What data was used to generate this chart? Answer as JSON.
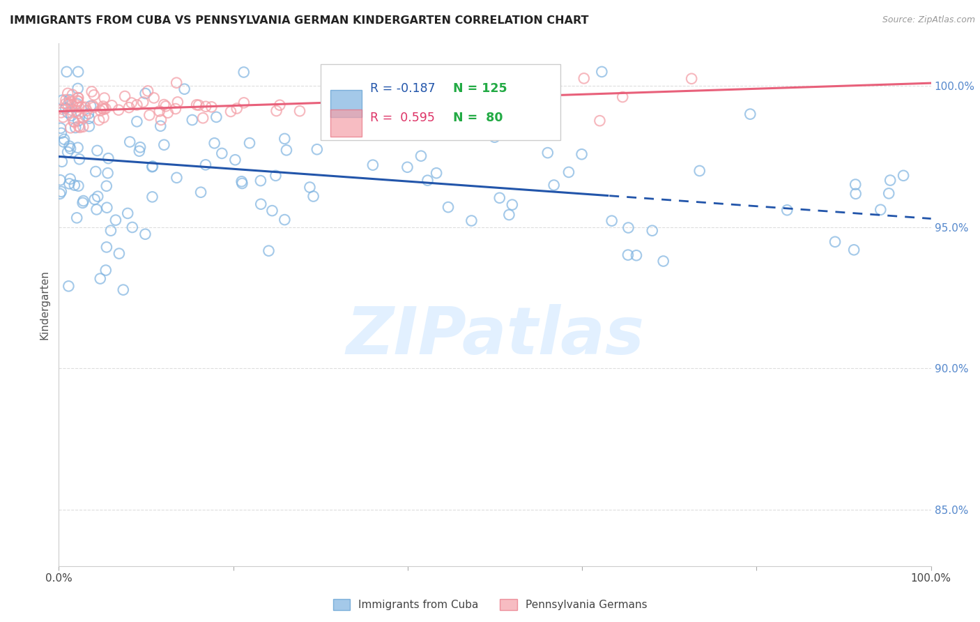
{
  "title": "IMMIGRANTS FROM CUBA VS PENNSYLVANIA GERMAN KINDERGARTEN CORRELATION CHART",
  "source": "Source: ZipAtlas.com",
  "ylabel": "Kindergarten",
  "r_blue": -0.187,
  "n_blue": 125,
  "r_pink": 0.595,
  "n_pink": 80,
  "ylim_min": 83.0,
  "ylim_max": 101.5,
  "xlim_min": 0,
  "xlim_max": 100,
  "y_ticks": [
    85.0,
    90.0,
    95.0,
    100.0
  ],
  "y_tick_labels": [
    "85.0%",
    "90.0%",
    "95.0%",
    "100.0%"
  ],
  "x_ticks": [
    0,
    20,
    40,
    60,
    80,
    100
  ],
  "x_tick_labels": [
    "0.0%",
    "",
    "",
    "",
    "",
    "100.0%"
  ],
  "blue_color": "#7EB3E0",
  "blue_edge": "#5A9ACF",
  "pink_color": "#F4A0A8",
  "pink_edge": "#E87080",
  "trend_blue_color": "#2255AA",
  "trend_pink_color": "#E8607A",
  "legend_blue_label": "Immigrants from Cuba",
  "legend_pink_label": "Pennsylvania Germans",
  "background_color": "#ffffff",
  "watermark_text": "ZIPatlas",
  "watermark_color": "#ddeeff",
  "grid_color": "#dddddd",
  "right_tick_color": "#5588CC",
  "blue_scatter_seed": 42,
  "pink_scatter_seed": 123,
  "legend_r_blue_color": "#2255AA",
  "legend_n_blue_color": "#22AA44",
  "legend_r_pink_color": "#DD3366",
  "legend_n_pink_color": "#22AA44"
}
